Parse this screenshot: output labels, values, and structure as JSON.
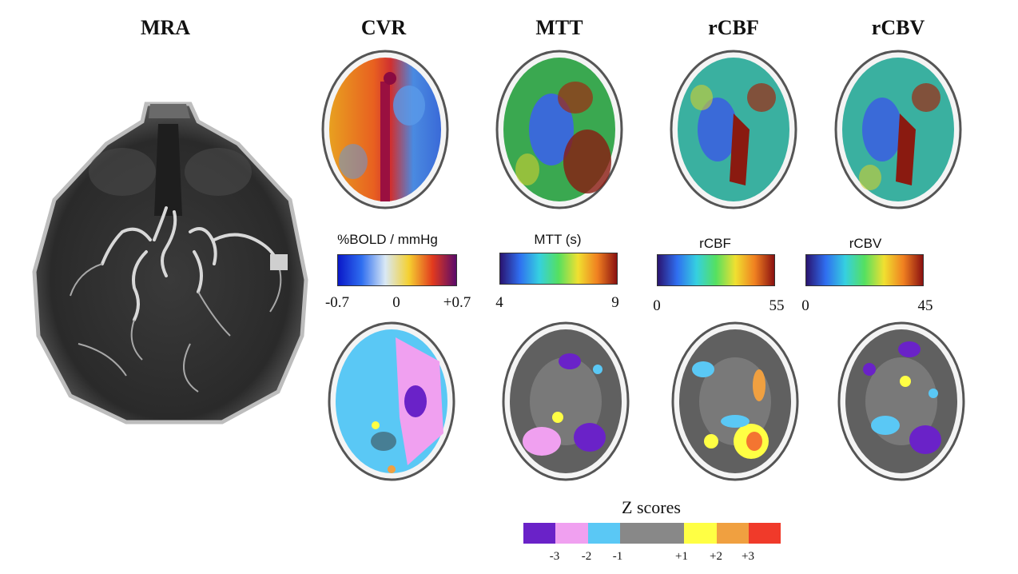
{
  "titles": {
    "mra": "MRA",
    "cvr": "CVR",
    "mtt": "MTT",
    "rcbf": "rCBF",
    "rcbv": "rCBV"
  },
  "colorbars": {
    "cvr": {
      "label": "%BOLD / mmHg",
      "min": "-0.7",
      "mid": "0",
      "max": "+0.7",
      "colors": [
        "#0a18c8",
        "#2f6ef0",
        "#d9e8f5",
        "#f5d030",
        "#e23a1e",
        "#5a0a6a"
      ]
    },
    "mtt": {
      "label": "MTT (s)",
      "min": "4",
      "max": "9",
      "colors": [
        "#2a1470",
        "#2f6ef0",
        "#35d0e0",
        "#55e060",
        "#f0e030",
        "#f08020",
        "#8a1010"
      ]
    },
    "rcbf": {
      "label": "rCBF",
      "min": "0",
      "max": "55",
      "colors": [
        "#2a1470",
        "#2f6ef0",
        "#35d0e0",
        "#55e060",
        "#f0e030",
        "#f08020",
        "#8a1010"
      ]
    },
    "rcbv": {
      "label": "rCBV",
      "min": "0",
      "max": "45",
      "colors": [
        "#2a1470",
        "#2f6ef0",
        "#35d0e0",
        "#55e060",
        "#f0e030",
        "#f08020",
        "#8a1010"
      ]
    }
  },
  "zscores": {
    "label": "Z scores",
    "segments": [
      {
        "color": "#6a22c8"
      },
      {
        "color": "#f0a0f0"
      },
      {
        "color": "#5ac8f5"
      },
      {
        "color": "#888888"
      },
      {
        "color": "#ffff44"
      },
      {
        "color": "#f0a040"
      },
      {
        "color": "#f03a2a"
      }
    ],
    "ticks": [
      "-3",
      "-2",
      "-1",
      "+1",
      "+2",
      "+3"
    ]
  }
}
